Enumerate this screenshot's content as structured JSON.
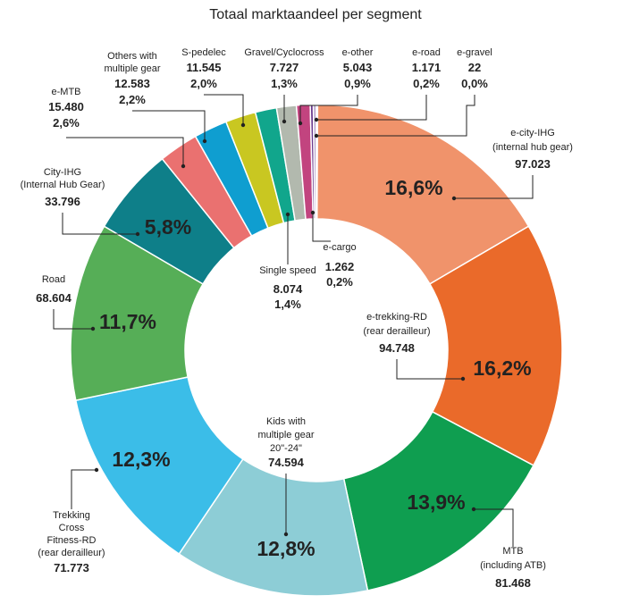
{
  "chart_data": {
    "type": "pie",
    "title": "Totaal marktaandeel per segment",
    "slices": [
      {
        "label": "e-city-IHG (internal hub gear)",
        "label_lines": [
          "e-city-IHG",
          "(internal hub gear)"
        ],
        "value": "97.023",
        "pct": "16,6%",
        "share": 16.6,
        "color": "#f0936b"
      },
      {
        "label": "e-trekking-RD (rear derailleur)",
        "label_lines": [
          "e-trekking-RD",
          "(rear derailleur)"
        ],
        "value": "94.748",
        "pct": "16,2%",
        "share": 16.2,
        "color": "#ea6a2a"
      },
      {
        "label": "MTB (including ATB)",
        "label_lines": [
          "MTB",
          "(including ATB)"
        ],
        "value": "81.468",
        "pct": "13,9%",
        "share": 13.9,
        "color": "#0f9e50"
      },
      {
        "label": "Kids with multiple gear 20\"-24\"",
        "label_lines": [
          "Kids with",
          "multiple gear",
          "20\"-24\""
        ],
        "value": "74.594",
        "pct": "12,8%",
        "share": 12.8,
        "color": "#8dcdd6"
      },
      {
        "label": "Trekking Cross Fitness-RD (rear derailleur)",
        "label_lines": [
          "Trekking",
          "Cross",
          "Fitness-RD",
          "(rear derailleur)"
        ],
        "value": "71.773",
        "pct": "12,3%",
        "share": 12.3,
        "color": "#3bbde8"
      },
      {
        "label": "Road",
        "label_lines": [
          "Road"
        ],
        "value": "68.604",
        "pct": "11,7%",
        "share": 11.7,
        "color": "#56ae57"
      },
      {
        "label": "City-IHG (Internal Hub Gear)",
        "label_lines": [
          "City-IHG",
          "(Internal Hub Gear)"
        ],
        "value": "33.796",
        "pct": "5,8%",
        "share": 5.8,
        "color": "#0e7f89"
      },
      {
        "label": "e-MTB",
        "label_lines": [
          "e-MTB"
        ],
        "value": "15.480",
        "pct": "2,6%",
        "share": 2.6,
        "color": "#ea7170"
      },
      {
        "label": "Others with multiple gear",
        "label_lines": [
          "Others with",
          "multiple gear"
        ],
        "value": "12.583",
        "pct": "2,2%",
        "share": 2.2,
        "color": "#0f9ed0"
      },
      {
        "label": "S-pedelec",
        "label_lines": [
          "S-pedelec"
        ],
        "value": "11.545",
        "pct": "2,0%",
        "share": 2.0,
        "color": "#c9c721"
      },
      {
        "label": "Single speed",
        "label_lines": [
          "Single speed"
        ],
        "value": "8.074",
        "pct": "1,4%",
        "share": 1.4,
        "color": "#11a68c"
      },
      {
        "label": "Gravel/Cyclocross",
        "label_lines": [
          "Gravel/Cyclocross"
        ],
        "value": "7.727",
        "pct": "1,3%",
        "share": 1.3,
        "color": "#b2b9ae"
      },
      {
        "label": "e-other",
        "label_lines": [
          "e-other"
        ],
        "value": "5.043",
        "pct": "0,9%",
        "share": 0.9,
        "color": "#c2447f"
      },
      {
        "label": "e-cargo",
        "label_lines": [
          "e-cargo"
        ],
        "value": "1.262",
        "pct": "0,2%",
        "share": 0.2,
        "color": "#6a3a8e"
      },
      {
        "label": "e-road",
        "label_lines": [
          "e-road"
        ],
        "value": "1.171",
        "pct": "0,2%",
        "share": 0.2,
        "color": "#b8a2cc"
      },
      {
        "label": "e-gravel",
        "label_lines": [
          "e-gravel"
        ],
        "value": "22",
        "pct": "0,0%",
        "share": 0.0,
        "color": "#e6d9ee"
      }
    ]
  }
}
